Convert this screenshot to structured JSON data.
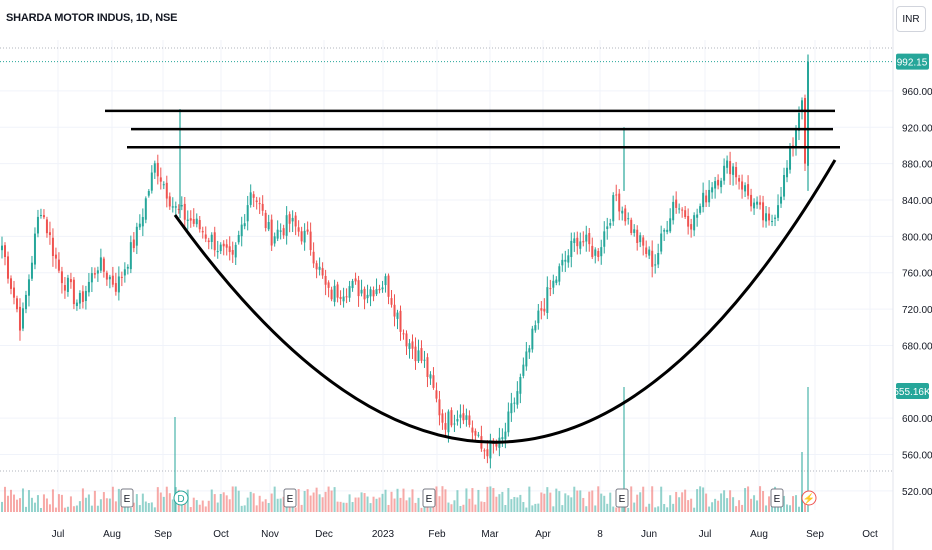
{
  "header": {
    "symbol_title": "SHARDA MOTOR INDUS, 1D, NSE",
    "currency": "INR"
  },
  "colors": {
    "up": "#26a69a",
    "down": "#ef5350",
    "drawing": "#000000",
    "price_badge": "#26a69a"
  },
  "badges": {
    "last_price": "992.15",
    "volume": "555.16K"
  },
  "events": [
    {
      "letter": "E",
      "x_label": "Aug",
      "type": "earnings"
    },
    {
      "letter": "D",
      "x_label": "Sep",
      "type": "dividend"
    },
    {
      "letter": "E",
      "x_label": "Nov",
      "type": "earnings"
    },
    {
      "letter": "E",
      "x_label": "Feb",
      "type": "earnings"
    },
    {
      "letter": "E",
      "x_label": "May",
      "type": "earnings"
    },
    {
      "letter": "E",
      "x_label": "Aug",
      "type": "earnings"
    },
    {
      "letter": "⚡",
      "x_label": "Sep",
      "type": "split"
    }
  ],
  "chart_data": {
    "type": "candlestick",
    "title": "SHARDA MOTOR INDUS, 1D, NSE",
    "x_ticks": [
      "Jul",
      "Aug",
      "Sep",
      "Oct",
      "Nov",
      "Dec",
      "2023",
      "Feb",
      "Mar",
      "Apr",
      "8",
      "Jun",
      "Jul",
      "Aug",
      "Sep",
      "Oct"
    ],
    "y_ticks": [
      "520.00",
      "560.00",
      "600.00",
      "680.00",
      "720.00",
      "760.00",
      "800.00",
      "840.00",
      "880.00",
      "920.00",
      "960.00"
    ],
    "ylim": [
      510,
      1005
    ],
    "price_path": [
      {
        "x": "Jul",
        "close": 790
      },
      {
        "x": "Jul",
        "close": 700
      },
      {
        "x": "Jul",
        "close": 835
      },
      {
        "x": "Aug",
        "close": 760
      },
      {
        "x": "Aug",
        "close": 725
      },
      {
        "x": "Aug",
        "close": 770
      },
      {
        "x": "Aug",
        "close": 745
      },
      {
        "x": "Sep",
        "close": 800
      },
      {
        "x": "Sep",
        "close": 880
      },
      {
        "x": "Sep",
        "close": 830
      },
      {
        "x": "Oct",
        "close": 815
      },
      {
        "x": "Oct",
        "close": 795
      },
      {
        "x": "Nov",
        "close": 770
      },
      {
        "x": "Nov",
        "close": 855
      },
      {
        "x": "Nov",
        "close": 800
      },
      {
        "x": "Dec",
        "close": 815
      },
      {
        "x": "Dec",
        "close": 795
      },
      {
        "x": "Dec",
        "close": 735
      },
      {
        "x": "2023",
        "close": 745
      },
      {
        "x": "2023",
        "close": 740
      },
      {
        "x": "Feb",
        "close": 750
      },
      {
        "x": "Feb",
        "close": 690
      },
      {
        "x": "Feb",
        "close": 660
      },
      {
        "x": "Mar",
        "close": 595
      },
      {
        "x": "Mar",
        "close": 610
      },
      {
        "x": "Mar",
        "close": 565
      },
      {
        "x": "Apr",
        "close": 570
      },
      {
        "x": "Apr",
        "close": 640
      },
      {
        "x": "Apr",
        "close": 715
      },
      {
        "x": "8",
        "close": 760
      },
      {
        "x": "8",
        "close": 800
      },
      {
        "x": "Jun",
        "close": 780
      },
      {
        "x": "Jun",
        "close": 845
      },
      {
        "x": "Jun",
        "close": 800
      },
      {
        "x": "Jul",
        "close": 770
      },
      {
        "x": "Jul",
        "close": 840
      },
      {
        "x": "Jul",
        "close": 815
      },
      {
        "x": "Aug",
        "close": 860
      },
      {
        "x": "Aug",
        "close": 880
      },
      {
        "x": "Aug",
        "close": 840
      },
      {
        "x": "Aug",
        "close": 810
      },
      {
        "x": "Sep",
        "close": 880
      },
      {
        "x": "Sep",
        "close": 992.15
      }
    ],
    "resistance_lines": [
      938,
      918,
      898
    ],
    "cup_curve_low": 548,
    "last_price": 992.15,
    "last_volume": "555.16K"
  }
}
